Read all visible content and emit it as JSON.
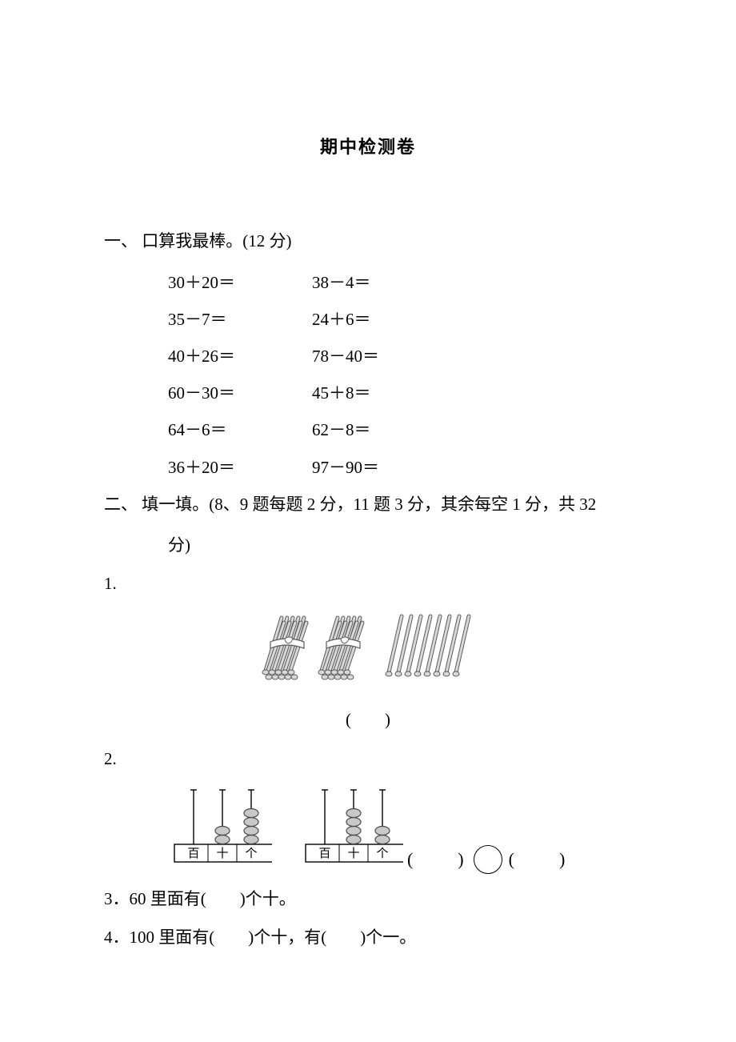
{
  "title": "期中检测卷",
  "section1": {
    "heading": "一、 口算我最棒。(12 分)",
    "rows": [
      {
        "left": "30＋20＝",
        "right": "38－4＝"
      },
      {
        "left": "35－7＝",
        "right": "24＋6＝"
      },
      {
        "left": "40＋26＝",
        "right": "78－40＝"
      },
      {
        "left": "60－30＝",
        "right": "45＋8＝"
      },
      {
        "left": "64－6＝",
        "right": "62－8＝"
      },
      {
        "left": "36＋20＝",
        "right": "97－90＝"
      }
    ]
  },
  "section2": {
    "heading": "二、 填一填。(8、9 题每题 2 分，11 题 3 分，其余每空 1 分，共 32",
    "heading_cont": "分)",
    "q1": {
      "label": "1.",
      "blank": "(　　)",
      "sticks": {
        "bundle_count": 2,
        "loose_count": 8,
        "stick_color": "#d8d8d8",
        "stick_stroke": "#5a5a5a",
        "tie_color": "#ffffff"
      }
    },
    "q2": {
      "label": "2.",
      "abacus_left": {
        "labels": [
          "百",
          "十",
          "个"
        ],
        "beads": [
          0,
          2,
          4
        ],
        "bead_color": "#c8c8c8",
        "bead_stroke": "#4a4a4a",
        "frame_stroke": "#000000",
        "rod_stroke": "#000000"
      },
      "abacus_right": {
        "labels": [
          "百",
          "十",
          "个"
        ],
        "beads": [
          0,
          4,
          2
        ],
        "bead_color": "#c8c8c8",
        "bead_stroke": "#4a4a4a",
        "frame_stroke": "#000000",
        "rod_stroke": "#000000"
      },
      "compare_left": "(　　)",
      "compare_right": "(　　)"
    },
    "q3": "3．60 里面有(　　)个十。",
    "q4": "4．100 里面有(　　)个十，有(　　)个一。"
  },
  "style": {
    "bg": "#ffffff",
    "text": "#000000",
    "font_body": "SimSun",
    "font_title": "SimHei",
    "fontsize_body": 21,
    "fontsize_title": 22
  }
}
